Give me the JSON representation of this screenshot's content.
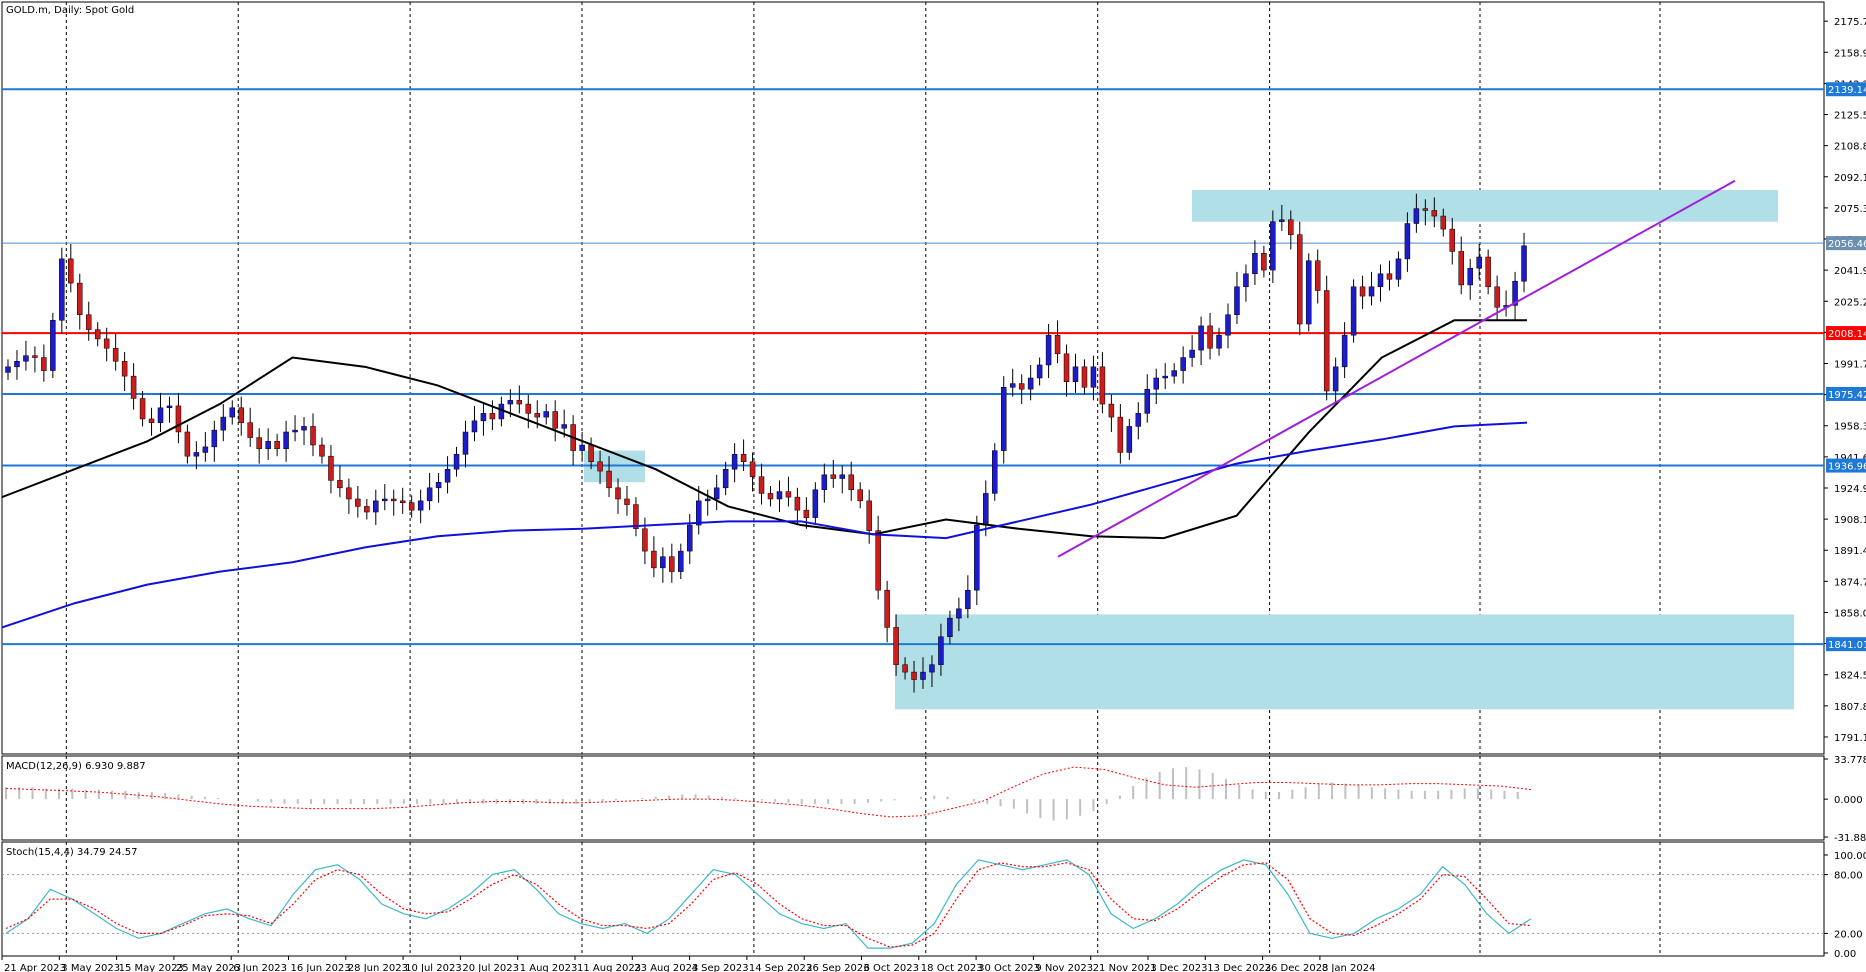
{
  "window": {
    "symbol_title": "GOLD.m, Daily:  Spot Gold"
  },
  "colors": {
    "bull": "#1c1ccc",
    "bear": "#cc1c1c",
    "hline_blue": "#1e78d8",
    "hline_red": "#ff0000",
    "zone": "#b0dfe8",
    "ma_fast": "#000000",
    "ma_slow": "#1010d8",
    "trend": "#a020d8",
    "macd_hist": "#c0c0c0",
    "macd_signal": "#ff0000",
    "stoch_main": "#3fb8c8",
    "stoch_signal": "#ff0000"
  },
  "chart_data": [
    {
      "type": "candlestick",
      "title": "GOLD.m, Daily:  Spot Gold",
      "ylim": [
        1782,
        2186
      ],
      "y_ticks": [
        "2175.71",
        "2158.99",
        "2142.27",
        "2125.55",
        "2108.83",
        "2092.11",
        "2075.39",
        "2058.67",
        "2041.95",
        "2025.23",
        "2008.51",
        "1991.79",
        "1975.07",
        "1958.35",
        "1941.63",
        "1924.91",
        "1908.19",
        "1891.47",
        "1874.75",
        "1858.03",
        "1841.31",
        "1824.59",
        "1807.87",
        "1791.15"
      ],
      "x_labels": [
        "21 Apr 2023",
        "3 May 2023",
        "15 May 2023",
        "25 May 2023",
        "6 Jun 2023",
        "16 Jun 2023",
        "28 Jun 2023",
        "10 Jul 2023",
        "20 Jul 2023",
        "1 Aug 2023",
        "11 Aug 2023",
        "23 Aug 2023",
        "4 Sep 2023",
        "14 Sep 2023",
        "26 Sep 2023",
        "6 Oct 2023",
        "18 Oct 2023",
        "30 Oct 2023",
        "9 Nov 2023",
        "21 Nov 2023",
        "1 Dec 2023",
        "13 Dec 2023",
        "26 Dec 2023",
        "8 Jan 2024"
      ],
      "close_series": [
        1990,
        1993,
        1996,
        1995,
        1988,
        2015,
        2048,
        2035,
        2018,
        2010,
        2005,
        2000,
        1993,
        1985,
        1973,
        1962,
        1960,
        1968,
        1969,
        1955,
        1942,
        1944,
        1947,
        1956,
        1963,
        1968,
        1960,
        1952,
        1946,
        1950,
        1946,
        1955,
        1956,
        1958,
        1948,
        1942,
        1929,
        1925,
        1919,
        1915,
        1912,
        1918,
        1919,
        1918,
        1917,
        1913,
        1918,
        1925,
        1928,
        1935,
        1943,
        1955,
        1961,
        1965,
        1962,
        1970,
        1972,
        1970,
        1965,
        1963,
        1966,
        1957,
        1959,
        1945,
        1948,
        1939,
        1934,
        1925,
        1919,
        1916,
        1903,
        1891,
        1882,
        1888,
        1880,
        1891,
        1905,
        1918,
        1919,
        1925,
        1935,
        1943,
        1939,
        1931,
        1922,
        1919,
        1923,
        1920,
        1913,
        1909,
        1924,
        1932,
        1930,
        1932,
        1924,
        1918,
        1902,
        1870,
        1850,
        1830,
        1826,
        1822,
        1826,
        1830,
        1845,
        1855,
        1860,
        1870,
        1905,
        1922,
        1945,
        1979,
        1981,
        1978,
        1984,
        1991,
        2007,
        1997,
        1982,
        1990,
        1979,
        1990,
        1970,
        1963,
        1944,
        1958,
        1965,
        1978,
        1984,
        1985,
        1988,
        1995,
        1999,
        2012,
        2000,
        2007,
        2018,
        2033,
        2040,
        2051,
        2042,
        2068,
        2069,
        2061,
        2013,
        2047,
        2031,
        1977,
        1990,
        2007,
        2033,
        2028,
        2033,
        2040,
        2037,
        2048,
        2067,
        2075,
        2074,
        2071,
        2064,
        2052,
        2034,
        2043,
        2049,
        2033,
        2022,
        2023,
        2036,
        2055
      ],
      "levels": [
        2139.14,
        2056.46,
        2008.14,
        1975.42,
        1936.96,
        1841.01
      ],
      "level_labels": [
        "2139.14",
        "2056.46",
        "2008.14",
        "1975.42",
        "1936.96",
        "1841.01"
      ],
      "zones": [
        [
          2068,
          2085
        ],
        [
          1806,
          1857
        ],
        [
          1928,
          1945
        ]
      ],
      "moving_averages": [
        {
          "period": "fast",
          "values": [
            1920,
            1935,
            1950,
            1970,
            1995,
            1990,
            1980,
            1965,
            1950,
            1935,
            1915,
            1905,
            1900,
            1908,
            1903,
            1899,
            1898,
            1910,
            1955,
            1995,
            2015,
            2015
          ]
        },
        {
          "period": "slow",
          "values": [
            1850,
            1863,
            1873,
            1880,
            1885,
            1893,
            1899,
            1902,
            1903,
            1905,
            1907,
            1907,
            1900,
            1898,
            1907,
            1916,
            1927,
            1938,
            1945,
            1951,
            1958,
            1960
          ]
        }
      ],
      "trendline": [
        [
          1888,
          2090
        ]
      ]
    },
    {
      "type": "bar",
      "name": "MACD",
      "label_text": "MACD(12,26,9) 6.930 9.887",
      "ylim": [
        -31.881,
        33.778
      ],
      "y_ticks": [
        "33.778",
        "0.000",
        "-31.881"
      ],
      "histogram": [
        10,
        10,
        10,
        9,
        9,
        9,
        8,
        8,
        7,
        7,
        6,
        6,
        5,
        4,
        3,
        2,
        1,
        0,
        0,
        -2,
        -3,
        -4,
        -4,
        -4,
        -4,
        -4,
        -4,
        -4,
        -4,
        -4,
        -4,
        -4,
        -4,
        -4,
        -4,
        -4,
        -4,
        -4,
        -4,
        -4,
        -4,
        -4,
        -4,
        -4,
        -3,
        -2,
        -1,
        0,
        1,
        2,
        3,
        4,
        4,
        3,
        2,
        1,
        0,
        -1,
        -2,
        -3,
        -4,
        -4,
        -4,
        -4,
        -4,
        -3,
        -2,
        -1,
        0,
        2,
        3,
        2,
        0,
        -2,
        -4,
        -6,
        -8,
        -12,
        -16,
        -18,
        -17,
        -14,
        -10,
        -4,
        3,
        11,
        18,
        23,
        26,
        27,
        25,
        22,
        17,
        12,
        8,
        6,
        6,
        8,
        10,
        13,
        14,
        13,
        12,
        10,
        9,
        8,
        7,
        7,
        7,
        8,
        9,
        9,
        8,
        7,
        6
      ],
      "signal": [
        9,
        8,
        7,
        6,
        4,
        2,
        -1,
        -4,
        -6,
        -7,
        -8,
        -8,
        -8,
        -7,
        -5,
        -3,
        -2,
        -2,
        -3,
        -3,
        -2,
        -1,
        0,
        0,
        -1,
        -3,
        -5,
        -8,
        -12,
        -15,
        -14,
        -8,
        -2,
        10,
        21,
        27,
        25,
        18,
        12,
        10,
        12,
        14,
        14,
        13,
        12,
        12,
        13,
        13,
        12,
        11,
        8
      ]
    },
    {
      "type": "line",
      "name": "Stochastic",
      "label_text": "Stoch(15,4,4) 34.79 24.57",
      "ylim": [
        0,
        100
      ],
      "y_ticks": [
        "100.00",
        "80.00",
        "20.00",
        "0.00"
      ],
      "main": [
        20,
        35,
        65,
        55,
        40,
        25,
        15,
        20,
        30,
        40,
        45,
        35,
        28,
        60,
        85,
        90,
        75,
        50,
        40,
        35,
        45,
        60,
        80,
        85,
        65,
        40,
        30,
        25,
        30,
        20,
        35,
        60,
        85,
        80,
        60,
        40,
        30,
        25,
        30,
        5,
        5,
        10,
        30,
        70,
        95,
        90,
        85,
        90,
        95,
        80,
        40,
        25,
        35,
        50,
        70,
        85,
        95,
        90,
        60,
        20,
        15,
        20,
        35,
        45,
        60,
        88,
        70,
        40,
        20,
        35
      ],
      "signal": [
        25,
        35,
        55,
        55,
        45,
        30,
        20,
        20,
        28,
        38,
        40,
        38,
        30,
        50,
        75,
        85,
        80,
        60,
        45,
        40,
        42,
        55,
        70,
        80,
        70,
        50,
        35,
        28,
        28,
        25,
        30,
        50,
        75,
        82,
        70,
        50,
        35,
        28,
        28,
        15,
        6,
        8,
        20,
        55,
        85,
        92,
        88,
        88,
        92,
        85,
        55,
        35,
        33,
        45,
        62,
        78,
        90,
        92,
        75,
        35,
        20,
        18,
        28,
        40,
        55,
        80,
        78,
        55,
        30,
        28
      ]
    }
  ]
}
